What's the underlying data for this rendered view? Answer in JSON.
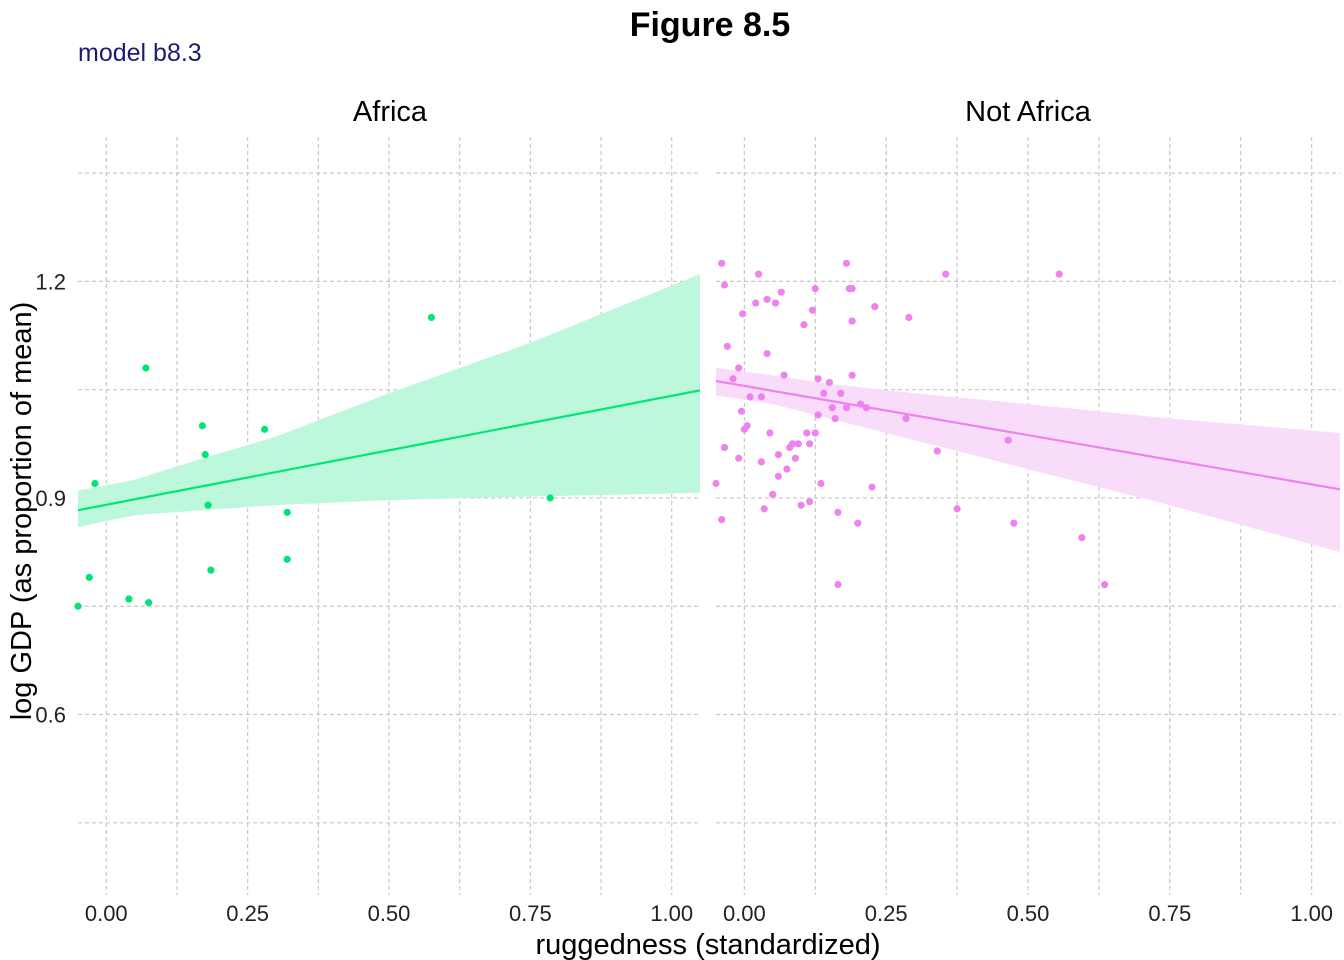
{
  "title": "Figure 8.5",
  "subtitle": "model b8.3",
  "colors": {
    "subtitle": "#1c1c73",
    "africa_point": "#00e676",
    "africa_line": "#00e676",
    "africa_ribbon": "#bdf7dc",
    "not_africa_point": "#ee82ee",
    "not_africa_line": "#ee82ee",
    "not_africa_ribbon": "#f9dcf9"
  },
  "chart_data": {
    "type": "scatter",
    "xlabel": "ruggedness (standardized)",
    "ylabel": "log GDP (as proportion of mean)",
    "xlim": [
      -0.05,
      1.05
    ],
    "ylim": [
      0.35,
      1.4
    ],
    "x_ticks": [
      0.0,
      0.25,
      0.5,
      0.75,
      1.0
    ],
    "x_tick_labels": [
      "0.00",
      "0.25",
      "0.50",
      "0.75",
      "1.00"
    ],
    "y_ticks": [
      0.6,
      0.9,
      1.2
    ],
    "y_tick_labels": [
      "0.6",
      "0.9",
      "1.2"
    ],
    "grid": true,
    "panels": [
      {
        "name": "Africa",
        "points": [
          [
            -0.05,
            0.75
          ],
          [
            -0.03,
            0.79
          ],
          [
            -0.02,
            0.92
          ],
          [
            0.04,
            0.76
          ],
          [
            0.07,
            1.08
          ],
          [
            0.075,
            0.755
          ],
          [
            0.17,
            1.0
          ],
          [
            0.175,
            0.96
          ],
          [
            0.18,
            0.89
          ],
          [
            0.185,
            0.8
          ],
          [
            0.28,
            0.995
          ],
          [
            0.32,
            0.88
          ],
          [
            0.32,
            0.815
          ],
          [
            0.575,
            1.15
          ],
          [
            0.785,
            0.9
          ]
        ],
        "fit": [
          [
            -0.05,
            0.883
          ],
          [
            1.05,
            1.049
          ]
        ],
        "ribbon_upper": [
          [
            -0.05,
            0.91
          ],
          [
            0.05,
            0.925
          ],
          [
            0.15,
            0.95
          ],
          [
            0.3,
            0.985
          ],
          [
            0.5,
            1.045
          ],
          [
            0.75,
            1.115
          ],
          [
            1.05,
            1.21
          ]
        ],
        "ribbon_lower": [
          [
            -0.05,
            0.86
          ],
          [
            0.05,
            0.876
          ],
          [
            0.15,
            0.882
          ],
          [
            0.3,
            0.89
          ],
          [
            0.5,
            0.897
          ],
          [
            0.75,
            0.902
          ],
          [
            1.05,
            0.907
          ]
        ]
      },
      {
        "name": "Not Africa",
        "points": [
          [
            -0.05,
            0.92
          ],
          [
            -0.04,
            0.87
          ],
          [
            -0.04,
            1.225
          ],
          [
            -0.035,
            1.195
          ],
          [
            -0.035,
            0.97
          ],
          [
            -0.03,
            1.11
          ],
          [
            -0.02,
            1.065
          ],
          [
            -0.01,
            0.955
          ],
          [
            -0.01,
            1.08
          ],
          [
            -0.005,
            1.02
          ],
          [
            -0.003,
            1.155
          ],
          [
            0.0,
            0.995
          ],
          [
            0.005,
            1.0
          ],
          [
            0.01,
            1.04
          ],
          [
            0.02,
            1.17
          ],
          [
            0.025,
            1.21
          ],
          [
            0.03,
            1.04
          ],
          [
            0.03,
            0.95
          ],
          [
            0.035,
            0.885
          ],
          [
            0.04,
            1.1
          ],
          [
            0.04,
            1.175
          ],
          [
            0.045,
            0.99
          ],
          [
            0.05,
            0.905
          ],
          [
            0.055,
            1.17
          ],
          [
            0.06,
            0.93
          ],
          [
            0.06,
            0.96
          ],
          [
            0.065,
            1.185
          ],
          [
            0.07,
            1.07
          ],
          [
            0.075,
            0.94
          ],
          [
            0.08,
            0.97
          ],
          [
            0.085,
            0.975
          ],
          [
            0.09,
            0.955
          ],
          [
            0.095,
            0.975
          ],
          [
            0.1,
            0.89
          ],
          [
            0.105,
            1.14
          ],
          [
            0.11,
            0.99
          ],
          [
            0.115,
            0.975
          ],
          [
            0.115,
            0.895
          ],
          [
            0.12,
            1.16
          ],
          [
            0.125,
            1.19
          ],
          [
            0.125,
            0.99
          ],
          [
            0.13,
            1.065
          ],
          [
            0.13,
            1.015
          ],
          [
            0.135,
            0.92
          ],
          [
            0.14,
            1.045
          ],
          [
            0.15,
            1.06
          ],
          [
            0.155,
            1.025
          ],
          [
            0.16,
            1.01
          ],
          [
            0.165,
            0.88
          ],
          [
            0.165,
            0.78
          ],
          [
            0.17,
            1.045
          ],
          [
            0.18,
            1.025
          ],
          [
            0.18,
            1.225
          ],
          [
            0.185,
            1.19
          ],
          [
            0.19,
            1.19
          ],
          [
            0.19,
            1.07
          ],
          [
            0.19,
            1.145
          ],
          [
            0.2,
            0.865
          ],
          [
            0.205,
            1.03
          ],
          [
            0.215,
            1.025
          ],
          [
            0.225,
            0.915
          ],
          [
            0.23,
            1.165
          ],
          [
            0.285,
            1.01
          ],
          [
            0.29,
            1.15
          ],
          [
            0.34,
            0.965
          ],
          [
            0.355,
            1.21
          ],
          [
            0.375,
            0.885
          ],
          [
            0.465,
            0.98
          ],
          [
            0.475,
            0.865
          ],
          [
            0.555,
            1.21
          ],
          [
            0.595,
            0.845
          ],
          [
            0.635,
            0.78
          ]
        ],
        "fit": [
          [
            -0.05,
            1.062
          ],
          [
            1.05,
            0.912
          ]
        ],
        "ribbon_upper": [
          [
            -0.05,
            1.08
          ],
          [
            0.05,
            1.07
          ],
          [
            0.15,
            1.058
          ],
          [
            0.3,
            1.045
          ],
          [
            0.5,
            1.03
          ],
          [
            0.75,
            1.01
          ],
          [
            1.05,
            0.99
          ]
        ],
        "ribbon_lower": [
          [
            -0.05,
            1.042
          ],
          [
            0.05,
            1.03
          ],
          [
            0.15,
            1.01
          ],
          [
            0.3,
            0.98
          ],
          [
            0.5,
            0.94
          ],
          [
            0.75,
            0.89
          ],
          [
            1.05,
            0.825
          ]
        ]
      }
    ]
  }
}
